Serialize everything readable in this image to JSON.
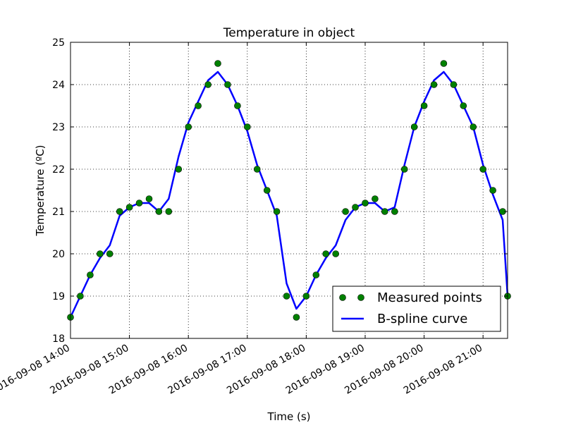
{
  "chart_data": {
    "type": "line",
    "title": "Temperature in object",
    "xlabel": "Time (s)",
    "ylabel": "Temperature (ºC)",
    "ylim": [
      18,
      25
    ],
    "xlim": [
      "2016-09-08 14:00",
      "2016-09-08 21:25"
    ],
    "grid": true,
    "legend_position": "bottom-right",
    "y_ticks": [
      "18",
      "19",
      "20",
      "21",
      "22",
      "23",
      "24",
      "25"
    ],
    "x_ticks": [
      "2016-09-08 14:00",
      "2016-09-08 15:00",
      "2016-09-08 16:00",
      "2016-09-08 17:00",
      "2016-09-08 18:00",
      "2016-09-08 19:00",
      "2016-09-08 20:00",
      "2016-09-08 21:00"
    ],
    "series": [
      {
        "name": "Measured points",
        "style": "markers",
        "color": "#008000",
        "points": [
          [
            "2016-09-08 14:00",
            18.5
          ],
          [
            "2016-09-08 14:10",
            19.0
          ],
          [
            "2016-09-08 14:20",
            19.5
          ],
          [
            "2016-09-08 14:30",
            20.0
          ],
          [
            "2016-09-08 14:40",
            20.0
          ],
          [
            "2016-09-08 14:50",
            21.0
          ],
          [
            "2016-09-08 15:00",
            21.1
          ],
          [
            "2016-09-08 15:10",
            21.2
          ],
          [
            "2016-09-08 15:20",
            21.3
          ],
          [
            "2016-09-08 15:30",
            21.0
          ],
          [
            "2016-09-08 15:40",
            21.0
          ],
          [
            "2016-09-08 15:50",
            22.0
          ],
          [
            "2016-09-08 16:00",
            23.0
          ],
          [
            "2016-09-08 16:10",
            23.5
          ],
          [
            "2016-09-08 16:20",
            24.0
          ],
          [
            "2016-09-08 16:30",
            24.5
          ],
          [
            "2016-09-08 16:40",
            24.0
          ],
          [
            "2016-09-08 16:50",
            23.5
          ],
          [
            "2016-09-08 17:00",
            23.0
          ],
          [
            "2016-09-08 17:10",
            22.0
          ],
          [
            "2016-09-08 17:20",
            21.5
          ],
          [
            "2016-09-08 17:30",
            21.0
          ],
          [
            "2016-09-08 17:40",
            19.0
          ],
          [
            "2016-09-08 17:50",
            18.5
          ],
          [
            "2016-09-08 18:00",
            19.0
          ],
          [
            "2016-09-08 18:10",
            19.5
          ],
          [
            "2016-09-08 18:20",
            20.0
          ],
          [
            "2016-09-08 18:30",
            20.0
          ],
          [
            "2016-09-08 18:40",
            21.0
          ],
          [
            "2016-09-08 18:50",
            21.1
          ],
          [
            "2016-09-08 19:00",
            21.2
          ],
          [
            "2016-09-08 19:10",
            21.3
          ],
          [
            "2016-09-08 19:20",
            21.0
          ],
          [
            "2016-09-08 19:30",
            21.0
          ],
          [
            "2016-09-08 19:40",
            22.0
          ],
          [
            "2016-09-08 19:50",
            23.0
          ],
          [
            "2016-09-08 20:00",
            23.5
          ],
          [
            "2016-09-08 20:10",
            24.0
          ],
          [
            "2016-09-08 20:20",
            24.5
          ],
          [
            "2016-09-08 20:30",
            24.0
          ],
          [
            "2016-09-08 20:40",
            23.5
          ],
          [
            "2016-09-08 20:50",
            23.0
          ],
          [
            "2016-09-08 21:00",
            22.0
          ],
          [
            "2016-09-08 21:10",
            21.5
          ],
          [
            "2016-09-08 21:20",
            21.0
          ],
          [
            "2016-09-08 21:25",
            19.0
          ]
        ]
      },
      {
        "name": "B-spline curve",
        "style": "line",
        "color": "#0000ff",
        "points": [
          [
            "2016-09-08 14:00",
            18.5
          ],
          [
            "2016-09-08 14:10",
            19.0
          ],
          [
            "2016-09-08 14:20",
            19.5
          ],
          [
            "2016-09-08 14:30",
            19.9
          ],
          [
            "2016-09-08 14:40",
            20.2
          ],
          [
            "2016-09-08 14:50",
            20.9
          ],
          [
            "2016-09-08 15:00",
            21.1
          ],
          [
            "2016-09-08 15:10",
            21.2
          ],
          [
            "2016-09-08 15:20",
            21.2
          ],
          [
            "2016-09-08 15:30",
            21.0
          ],
          [
            "2016-09-08 15:40",
            21.3
          ],
          [
            "2016-09-08 15:50",
            22.3
          ],
          [
            "2016-09-08 16:00",
            23.1
          ],
          [
            "2016-09-08 16:10",
            23.6
          ],
          [
            "2016-09-08 16:20",
            24.1
          ],
          [
            "2016-09-08 16:30",
            24.3
          ],
          [
            "2016-09-08 16:40",
            24.0
          ],
          [
            "2016-09-08 16:50",
            23.5
          ],
          [
            "2016-09-08 17:00",
            22.9
          ],
          [
            "2016-09-08 17:10",
            22.1
          ],
          [
            "2016-09-08 17:20",
            21.5
          ],
          [
            "2016-09-08 17:30",
            20.9
          ],
          [
            "2016-09-08 17:40",
            19.3
          ],
          [
            "2016-09-08 17:50",
            18.7
          ],
          [
            "2016-09-08 18:00",
            19.0
          ],
          [
            "2016-09-08 18:10",
            19.5
          ],
          [
            "2016-09-08 18:20",
            19.9
          ],
          [
            "2016-09-08 18:30",
            20.2
          ],
          [
            "2016-09-08 18:40",
            20.8
          ],
          [
            "2016-09-08 18:50",
            21.1
          ],
          [
            "2016-09-08 19:00",
            21.2
          ],
          [
            "2016-09-08 19:10",
            21.2
          ],
          [
            "2016-09-08 19:20",
            21.0
          ],
          [
            "2016-09-08 19:30",
            21.1
          ],
          [
            "2016-09-08 19:40",
            22.1
          ],
          [
            "2016-09-08 19:50",
            23.0
          ],
          [
            "2016-09-08 20:00",
            23.6
          ],
          [
            "2016-09-08 20:10",
            24.1
          ],
          [
            "2016-09-08 20:20",
            24.3
          ],
          [
            "2016-09-08 20:30",
            24.0
          ],
          [
            "2016-09-08 20:40",
            23.5
          ],
          [
            "2016-09-08 20:50",
            23.0
          ],
          [
            "2016-09-08 21:00",
            22.1
          ],
          [
            "2016-09-08 21:10",
            21.4
          ],
          [
            "2016-09-08 21:20",
            20.8
          ],
          [
            "2016-09-08 21:25",
            19.0
          ]
        ]
      }
    ]
  }
}
